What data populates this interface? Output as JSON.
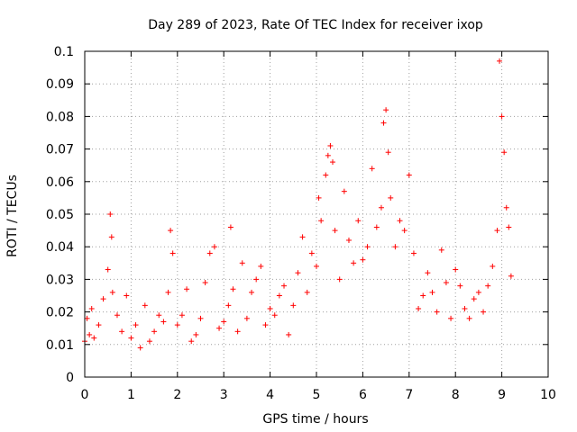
{
  "chart_data": {
    "type": "scatter",
    "title": "Day 289 of 2023, Rate Of TEC Index for receiver ixop",
    "xlabel": "GPS time / hours",
    "ylabel": "ROTI / TECUs",
    "xlim": [
      0,
      10
    ],
    "ylim": [
      0,
      0.1
    ],
    "x_ticks": [
      0,
      1,
      2,
      3,
      4,
      5,
      6,
      7,
      8,
      9,
      10
    ],
    "y_ticks": [
      0,
      0.01,
      0.02,
      0.03,
      0.04,
      0.05,
      0.06,
      0.07,
      0.08,
      0.09,
      0.1
    ],
    "x_tick_labels": [
      "0",
      "1",
      "2",
      "3",
      "4",
      "5",
      "6",
      "7",
      "8",
      "9",
      "10"
    ],
    "y_tick_labels": [
      "0",
      "0.01",
      "0.02",
      "0.03",
      "0.04",
      "0.05",
      "0.06",
      "0.07",
      "0.08",
      "0.09",
      "0.1"
    ],
    "grid": true,
    "marker": "+",
    "color": "#ff0000",
    "series": [
      {
        "name": "ROTI",
        "x": [
          0.0,
          0.05,
          0.1,
          0.15,
          0.2,
          0.3,
          0.4,
          0.5,
          0.55,
          0.58,
          0.6,
          0.7,
          0.8,
          0.9,
          1.0,
          1.1,
          1.2,
          1.3,
          1.4,
          1.5,
          1.6,
          1.7,
          1.8,
          1.85,
          1.9,
          2.0,
          2.1,
          2.2,
          2.3,
          2.4,
          2.5,
          2.6,
          2.7,
          2.8,
          2.9,
          3.0,
          3.1,
          3.15,
          3.2,
          3.3,
          3.4,
          3.5,
          3.6,
          3.7,
          3.8,
          3.9,
          4.0,
          4.1,
          4.2,
          4.3,
          4.4,
          4.5,
          4.6,
          4.7,
          4.8,
          4.9,
          5.0,
          5.05,
          5.1,
          5.2,
          5.25,
          5.3,
          5.35,
          5.4,
          5.5,
          5.6,
          5.7,
          5.8,
          5.9,
          6.0,
          6.1,
          6.2,
          6.3,
          6.4,
          6.45,
          6.5,
          6.55,
          6.6,
          6.7,
          6.8,
          6.9,
          7.0,
          7.1,
          7.2,
          7.3,
          7.4,
          7.5,
          7.6,
          7.7,
          7.8,
          7.9,
          8.0,
          8.1,
          8.2,
          8.3,
          8.4,
          8.5,
          8.6,
          8.7,
          8.8,
          8.9,
          8.95,
          9.0,
          9.05,
          9.1,
          9.15,
          9.2
        ],
        "y": [
          0.011,
          0.018,
          0.013,
          0.021,
          0.012,
          0.016,
          0.024,
          0.033,
          0.05,
          0.043,
          0.026,
          0.019,
          0.014,
          0.025,
          0.012,
          0.016,
          0.009,
          0.022,
          0.011,
          0.014,
          0.019,
          0.017,
          0.026,
          0.045,
          0.038,
          0.016,
          0.019,
          0.027,
          0.011,
          0.013,
          0.018,
          0.029,
          0.038,
          0.04,
          0.015,
          0.017,
          0.022,
          0.046,
          0.027,
          0.014,
          0.035,
          0.018,
          0.026,
          0.03,
          0.034,
          0.016,
          0.021,
          0.019,
          0.025,
          0.028,
          0.013,
          0.022,
          0.032,
          0.043,
          0.026,
          0.038,
          0.034,
          0.055,
          0.048,
          0.062,
          0.068,
          0.071,
          0.066,
          0.045,
          0.03,
          0.057,
          0.042,
          0.035,
          0.048,
          0.036,
          0.04,
          0.064,
          0.046,
          0.052,
          0.078,
          0.082,
          0.069,
          0.055,
          0.04,
          0.048,
          0.045,
          0.062,
          0.038,
          0.021,
          0.025,
          0.032,
          0.026,
          0.02,
          0.039,
          0.029,
          0.018,
          0.033,
          0.028,
          0.021,
          0.018,
          0.024,
          0.026,
          0.02,
          0.028,
          0.034,
          0.045,
          0.097,
          0.08,
          0.069,
          0.052,
          0.046,
          0.031
        ]
      }
    ]
  }
}
